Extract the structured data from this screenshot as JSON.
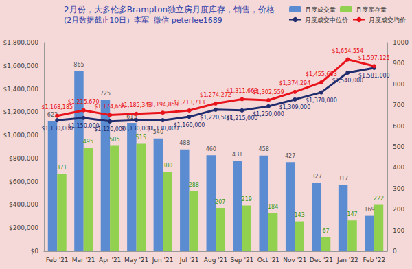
{
  "chart_data": {
    "type": "bar",
    "title": "2月份，大多伦多Brampton独立房月度库存，销售，价格",
    "subtitle": "(2月数据截止10日）李军  微信 peterlee1689",
    "categories": [
      "Feb '21",
      "Mar '21",
      "Apr '21",
      "May '21",
      "Jun '21",
      "Jul '21",
      "Aug '21",
      "Sep '21",
      "Oct '21",
      "Nov '21",
      "Dec '21",
      "Jan '22",
      "Feb '22"
    ],
    "series": [
      {
        "name": "月度成交量",
        "type": "bar",
        "axis": "y2",
        "color": "#5b8bd0",
        "values": [
          623,
          865,
          725,
          615,
          540,
          488,
          460,
          431,
          458,
          427,
          327,
          317,
          169
        ]
      },
      {
        "name": "月度库存量",
        "type": "bar",
        "axis": "y2",
        "color": "#92d050",
        "values": [
          371,
          495,
          505,
          515,
          380,
          288,
          207,
          219,
          184,
          143,
          67,
          147,
          222
        ]
      },
      {
        "name": "月度成交中位价",
        "type": "line",
        "color": "#1f2d6e",
        "marker": "circle",
        "values": [
          1130000,
          1150000,
          1120000,
          1130000,
          1130000,
          1160000,
          1220500,
          1215000,
          1250000,
          1309000,
          1370000,
          1540000,
          1581000
        ],
        "value_labels": [
          "$1,130,000",
          "$1,150,000",
          "$1,120,000",
          "$1,130,000",
          "$1,130,000",
          "$1,160,000",
          "$1,220,500",
          "$1,215,000",
          "$1,250,000",
          "$1,309,000",
          "$1,370,000",
          "$1,540,000",
          "$1,581,000"
        ]
      },
      {
        "name": "月度成交均价",
        "type": "line",
        "color": "#e8131b",
        "marker": "circle",
        "values": [
          1168185,
          1215670,
          1174655,
          1185343,
          1194859,
          1213713,
          1274272,
          1311663,
          1302559,
          1374294,
          1455683,
          1654554,
          1597125
        ],
        "value_labels": [
          "$1,168,185",
          "$1,215,670",
          "$1,174,655",
          "$1,185,343",
          "$1,194,859",
          "$1,213,713",
          "$1,274,272",
          "$1,311,663",
          "$1,302,559",
          "$1,374,294",
          "$1,455,683",
          "$1,654,554",
          "$1,597,125"
        ]
      }
    ],
    "ylim": [
      0,
      1800000
    ],
    "yticks": [
      {
        "value": 0,
        "label": "$0"
      },
      {
        "value": 200000,
        "label": "$200,000"
      },
      {
        "value": 400000,
        "label": "$400,000"
      },
      {
        "value": 600000,
        "label": "$600,000"
      },
      {
        "value": 800000,
        "label": "$800,000"
      },
      {
        "value": 1000000,
        "label": "$1,000,000"
      },
      {
        "value": 1200000,
        "label": "$1,200,000"
      },
      {
        "value": 1400000,
        "label": "$1,400,000"
      },
      {
        "value": 1600000,
        "label": "$1,600,000"
      },
      {
        "value": 1800000,
        "label": "$1,800,000"
      }
    ],
    "y2lim": [
      0,
      1000
    ],
    "y2ticks": [
      0,
      100,
      200,
      300,
      400,
      500,
      600,
      700,
      800,
      900,
      1000
    ],
    "grid": false,
    "legend": "top",
    "data_labels": true
  }
}
